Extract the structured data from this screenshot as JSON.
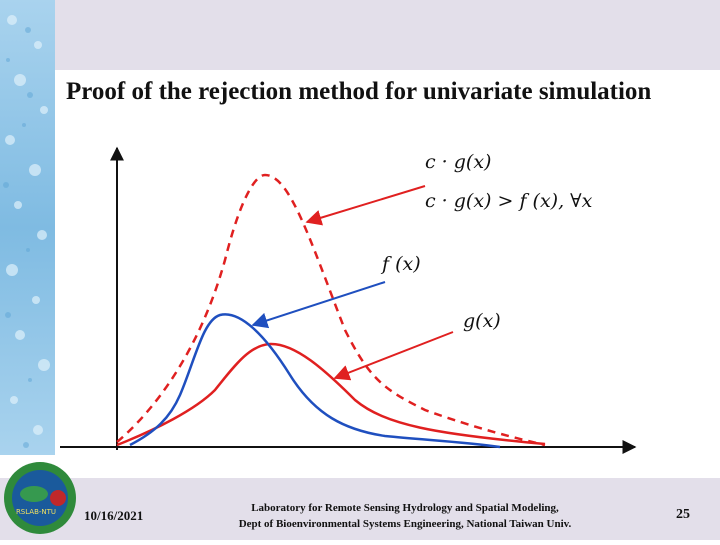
{
  "slide": {
    "title": "Proof of the rejection method for univariate simulation"
  },
  "diagram": {
    "labels": {
      "cg": "c · g(x)",
      "inequality": "c · g(x) > f (x),  ∀x",
      "f": "f (x)",
      "g": "g(x)"
    },
    "colors": {
      "f_curve": "#1f4fbf",
      "g_curve": "#e02020",
      "cg_curve": "#e02020",
      "axis": "#111111"
    }
  },
  "footer": {
    "date": "10/16/2021",
    "lab_line1": "Laboratory for Remote Sensing Hydrology and Spatial Modeling,",
    "lab_line2": "Dept of Bioenvironmental Systems Engineering,  National Taiwan Univ.",
    "page": "25",
    "logo_text": "RSLAB-NTU"
  }
}
